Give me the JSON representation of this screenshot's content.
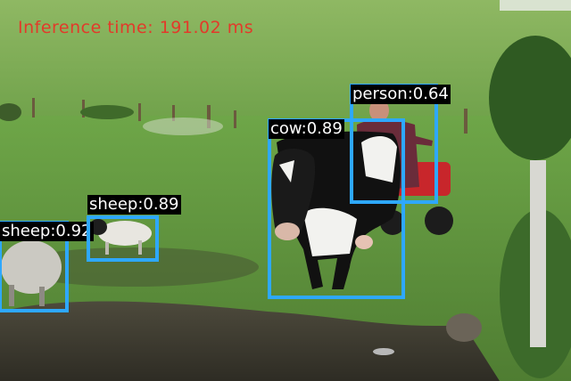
{
  "overlay": {
    "inference_text": "Inference time: 191.02 ms"
  },
  "colors": {
    "box": "#2ea8ff",
    "label_bg": "#000000",
    "label_text": "#ffffff",
    "inference_text": "#e23a2a"
  },
  "detections": [
    {
      "label": "sheep:0.92"
    },
    {
      "label": "sheep:0.89"
    },
    {
      "label": "cow:0.89"
    },
    {
      "label": "person:0.64"
    }
  ]
}
